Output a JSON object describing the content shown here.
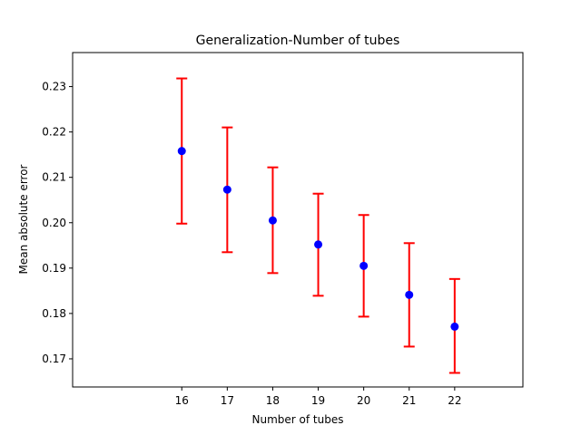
{
  "chart_data": {
    "type": "scatter",
    "title": "Generalization-Number of tubes",
    "xlabel": "Number of tubes",
    "ylabel": "Mean absolute error",
    "xlim": [
      13.6,
      23.5
    ],
    "ylim": [
      0.1638,
      0.2375
    ],
    "xticks": [
      16,
      17,
      18,
      19,
      20,
      21,
      22
    ],
    "yticks": [
      0.17,
      0.18,
      0.19,
      0.2,
      0.21,
      0.22,
      0.23
    ],
    "ytick_labels": [
      "0.17",
      "0.18",
      "0.19",
      "0.20",
      "0.21",
      "0.22",
      "0.23"
    ],
    "grid": false,
    "colors": {
      "marker": "#0000ff",
      "errorbar": "#ff0000"
    },
    "series": [
      {
        "x": [
          16,
          17,
          18,
          19,
          20,
          21,
          22
        ],
        "y": [
          0.2158,
          0.2073,
          0.2005,
          0.1952,
          0.1905,
          0.1841,
          0.1771
        ],
        "yerr_low": [
          0.1998,
          0.1935,
          0.1889,
          0.1839,
          0.1793,
          0.1727,
          0.1669
        ],
        "yerr_high": [
          0.2318,
          0.221,
          0.2122,
          0.2064,
          0.2017,
          0.1955,
          0.1876
        ]
      }
    ]
  }
}
